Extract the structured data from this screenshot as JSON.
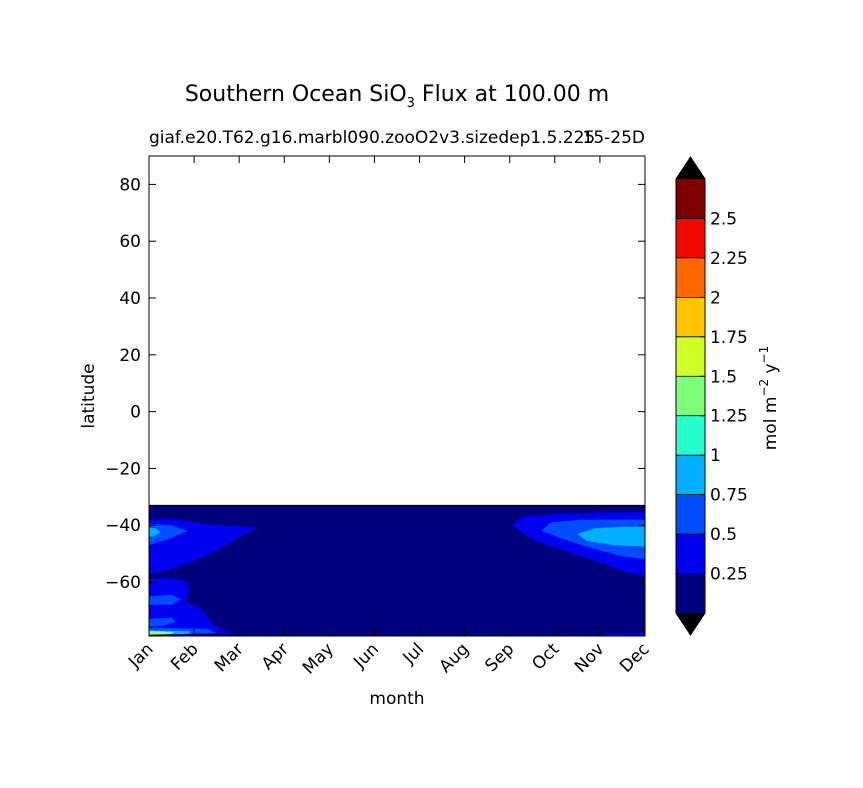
{
  "chart_data": {
    "type": "contour",
    "title": {
      "prefix": "Southern Ocean SiO",
      "subscript": "3",
      "suffix": " Flux at 100.00 m"
    },
    "subtitle_left": "giaf.e20.T62.g16.marbl090.zooO2v3.sizedep1.5.225",
    "subtitle_right": "15-25D",
    "xlabel": "month",
    "ylabel": "latitude",
    "categories": [
      "Jan",
      "Feb",
      "Mar",
      "Apr",
      "May",
      "Jun",
      "Jul",
      "Aug",
      "Sep",
      "Oct",
      "Nov",
      "Dec"
    ],
    "ylim": [
      -79,
      90
    ],
    "yticks": [
      80,
      60,
      40,
      20,
      0,
      -20,
      -40,
      -60
    ],
    "ytick_labels": [
      "80",
      "60",
      "40",
      "20",
      "0",
      "−20",
      "−40",
      "−60"
    ],
    "data_extent_lat": [
      -79,
      -33
    ],
    "colorbar": {
      "label_main": "mol m",
      "label_exp1": "−2",
      "label_mid": " y",
      "label_exp2": "−1",
      "levels": [
        0,
        0.25,
        0.5,
        0.75,
        1.0,
        1.25,
        1.5,
        1.75,
        2.0,
        2.25,
        2.5,
        2.75
      ],
      "tick_values": [
        0.25,
        0.5,
        0.75,
        1.0,
        1.25,
        1.5,
        1.75,
        2.0,
        2.25,
        2.5
      ],
      "tick_labels": [
        "0.25",
        "0.5",
        "0.75",
        "1",
        "1.25",
        "1.5",
        "1.75",
        "2",
        "2.25",
        "2.5"
      ],
      "colors": [
        "#00007f",
        "#0000f1",
        "#004cff",
        "#00b0ff",
        "#29ffce",
        "#7dff7a",
        "#ceff29",
        "#ffc400",
        "#ff6800",
        "#f10800",
        "#7f0000"
      ],
      "under_color": "#000000",
      "over_color": "#000000"
    },
    "contour_regions": [
      {
        "level": 0.25,
        "description": "band 0.25-0.5",
        "points": [
          [
            0,
            -38
          ],
          [
            0.6,
            -38
          ],
          [
            1.2,
            -39.5
          ],
          [
            2.4,
            -41
          ],
          [
            2.0,
            -44
          ],
          [
            1.5,
            -49
          ],
          [
            0.9,
            -53
          ],
          [
            0.35,
            -56
          ],
          [
            0,
            -57
          ]
        ]
      },
      {
        "level": 0.25,
        "description": "band 0.25-0.5",
        "points": [
          [
            0,
            -59
          ],
          [
            0.3,
            -58.5
          ],
          [
            0.8,
            -59.5
          ],
          [
            0.9,
            -63
          ],
          [
            0.8,
            -67
          ],
          [
            1.2,
            -70
          ],
          [
            1.4,
            -75
          ],
          [
            1.8,
            -78
          ],
          [
            0,
            -78
          ]
        ]
      },
      {
        "level": 0.25,
        "description": "band 0.25-0.5",
        "points": [
          [
            8.05,
            -40
          ],
          [
            8.3,
            -37
          ],
          [
            9.0,
            -36
          ],
          [
            10.2,
            -35.5
          ],
          [
            11,
            -35.5
          ],
          [
            11,
            -58
          ],
          [
            10.5,
            -56
          ],
          [
            10.0,
            -53
          ],
          [
            9.2,
            -49
          ],
          [
            8.5,
            -45
          ]
        ]
      },
      {
        "level": 0.25,
        "description": "band 0.25-0.5",
        "points": [
          [
            9.8,
            -79
          ],
          [
            10.2,
            -78.2
          ],
          [
            11,
            -78
          ],
          [
            11,
            -79
          ]
        ]
      },
      {
        "level": 0.5,
        "description": "band 0.5-0.75",
        "points": [
          [
            0,
            -39.5
          ],
          [
            0.5,
            -40
          ],
          [
            0.85,
            -42
          ],
          [
            0.5,
            -44.5
          ],
          [
            0.2,
            -46
          ],
          [
            0,
            -47
          ]
        ]
      },
      {
        "level": 0.5,
        "description": "band 0.5-0.75",
        "points": [
          [
            0,
            -65
          ],
          [
            0.5,
            -64.5
          ],
          [
            0.7,
            -66
          ],
          [
            0.5,
            -68
          ],
          [
            0,
            -68
          ]
        ]
      },
      {
        "level": 0.5,
        "description": "band 0.5-0.75",
        "points": [
          [
            0,
            -73
          ],
          [
            0.5,
            -72.5
          ],
          [
            0.6,
            -74
          ],
          [
            0.3,
            -75.5
          ],
          [
            0,
            -75.5
          ]
        ]
      },
      {
        "level": 0.5,
        "description": "band 0.5-0.75",
        "points": [
          [
            0,
            -76
          ],
          [
            1.3,
            -76.5
          ],
          [
            1.5,
            -78
          ],
          [
            0,
            -78.5
          ]
        ]
      },
      {
        "level": 0.5,
        "description": "band 0.5-0.75",
        "points": [
          [
            8.7,
            -42
          ],
          [
            8.9,
            -39
          ],
          [
            9.6,
            -38
          ],
          [
            11,
            -38
          ],
          [
            11,
            -52
          ],
          [
            10.5,
            -51
          ],
          [
            9.8,
            -48
          ],
          [
            9.2,
            -45
          ]
        ]
      },
      {
        "level": 0.75,
        "description": "band 0.75-1",
        "points": [
          [
            0,
            -41
          ],
          [
            0.15,
            -41
          ],
          [
            0.25,
            -42.5
          ],
          [
            0.1,
            -44
          ],
          [
            0,
            -44
          ]
        ]
      },
      {
        "level": 0.75,
        "description": "band 0.75-1",
        "points": [
          [
            9.5,
            -43
          ],
          [
            9.9,
            -41
          ],
          [
            10.5,
            -40.5
          ],
          [
            11,
            -40.5
          ],
          [
            11,
            -47.5
          ],
          [
            10.3,
            -47
          ],
          [
            9.7,
            -45.5
          ]
        ]
      },
      {
        "level": 0.75,
        "description": "band 0.75-1",
        "points": [
          [
            0,
            -77
          ],
          [
            0.9,
            -77.3
          ],
          [
            0.9,
            -78.2
          ],
          [
            0,
            -78.5
          ]
        ]
      },
      {
        "level": 1.25,
        "description": "band 1.25-1.5",
        "points": [
          [
            0,
            -77.2
          ],
          [
            0.55,
            -77.6
          ],
          [
            0.5,
            -78.3
          ],
          [
            0,
            -78.5
          ]
        ]
      },
      {
        "level": 1.5,
        "description": "band 1.5-1.75",
        "points": [
          [
            0.1,
            -77.8
          ],
          [
            0.4,
            -77.9
          ],
          [
            0.35,
            -78.3
          ],
          [
            0.1,
            -78.3
          ]
        ]
      }
    ]
  }
}
